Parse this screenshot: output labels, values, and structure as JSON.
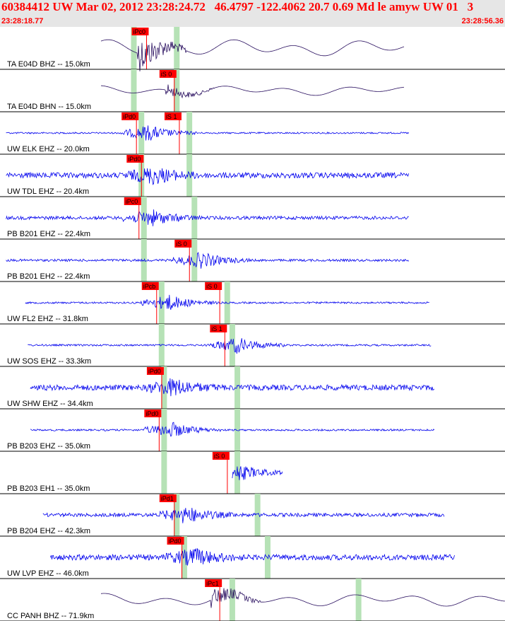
{
  "header": {
    "title": "60384412 UW Mar 02, 2012 23:28:24.72   46.4797 -122.4062 20.7 0.69 Md le amyw UW 01   3",
    "time_start": "23:28:18.77",
    "time_end": "23:28:56.36"
  },
  "colors": {
    "header_bg": "#e6e6e6",
    "header_text": "#ff0000",
    "trace_broadband": "#2a1060",
    "trace_short_period": "#0000ee",
    "pick_flag": "#ff0000",
    "window_band": "#b6e2b6",
    "separator": "#000000"
  },
  "traces": [
    {
      "label": "TA E04D BHZ -- 15.0km",
      "type": "lowfreq",
      "s": 0.2,
      "e": 0.8,
      "amp": 0.6,
      "picks": [
        {
          "text": "iPc0",
          "at": 0.265
        }
      ],
      "bands": [
        0.265,
        0.35
      ]
    },
    {
      "label": "TA E04D BHN -- 15.0km",
      "type": "lowfreq",
      "s": 0.2,
      "e": 0.8,
      "amp": 0.35,
      "picks": [
        {
          "text": "iS 0",
          "at": 0.32
        }
      ],
      "bands": [
        0.265,
        0.35
      ]
    },
    {
      "label": "UW ELK EHZ -- 20.0km",
      "type": "hf",
      "s": 0.012,
      "e": 0.81,
      "amp": 0.04,
      "picks": [
        {
          "text": "iPd0",
          "at": 0.245
        },
        {
          "text": "iS 1",
          "at": 0.33
        }
      ],
      "bands": [
        0.28,
        0.375
      ]
    },
    {
      "label": "UW TDL EHZ -- 20.4km",
      "type": "hf",
      "s": 0.012,
      "e": 0.81,
      "amp": 0.35,
      "picks": [
        {
          "text": "iPd0",
          "at": 0.255
        }
      ],
      "bands": [
        0.28,
        0.375
      ]
    },
    {
      "label": "PB B201 EHZ -- 22.4km",
      "type": "hf",
      "s": 0.012,
      "e": 0.81,
      "amp": 0.18,
      "picks": [
        {
          "text": "iPc0",
          "at": 0.25
        }
      ],
      "bands": [
        0.285,
        0.385
      ]
    },
    {
      "label": "PB B201 EH2 -- 22.4km",
      "type": "hf",
      "s": 0.012,
      "e": 0.81,
      "amp": 0.1,
      "picks": [
        {
          "text": "iS 0",
          "at": 0.35
        }
      ],
      "bands": [
        0.285,
        0.385
      ]
    },
    {
      "label": "UW FL2 EHZ -- 31.8km",
      "type": "hf",
      "s": 0.05,
      "e": 0.85,
      "amp": 0.06,
      "picks": [
        {
          "text": "iPcb",
          "at": 0.285
        },
        {
          "text": "iS 0",
          "at": 0.41
        }
      ],
      "bands": [
        0.32,
        0.45
      ]
    },
    {
      "label": "UW SOS EHZ -- 33.3km",
      "type": "hf",
      "s": 0.055,
      "e": 0.855,
      "amp": 0.06,
      "picks": [
        {
          "text": "iS 1",
          "at": 0.42
        }
      ],
      "bands": [
        0.32,
        0.46
      ]
    },
    {
      "label": "UW SHW EHZ -- 34.4km",
      "type": "hf",
      "s": 0.06,
      "e": 0.86,
      "amp": 0.35,
      "picks": [
        {
          "text": "iPd0",
          "at": 0.295
        }
      ],
      "bands": [
        0.325,
        0.47
      ]
    },
    {
      "label": "PB B203 EHZ -- 35.0km",
      "type": "hf",
      "s": 0.06,
      "e": 0.86,
      "amp": 0.06,
      "picks": [
        {
          "text": "iPd0",
          "at": 0.29
        }
      ],
      "bands": [
        0.325,
        0.47
      ]
    },
    {
      "label": "PB B203 EH1 -- 35.0km",
      "type": "hf",
      "s": 0.46,
      "e": 0.56,
      "amp": 0.1,
      "picks": [
        {
          "text": "iS 0",
          "at": 0.425
        }
      ],
      "bands": [
        0.325,
        0.47
      ]
    },
    {
      "label": "PB B204 EHZ -- 42.3km",
      "type": "hf",
      "s": 0.085,
      "e": 0.88,
      "amp": 0.2,
      "picks": [
        {
          "text": "iPd1",
          "at": 0.32
        }
      ],
      "bands": [
        0.35,
        0.51
      ]
    },
    {
      "label": "UW LVP EHZ -- 46.0km",
      "type": "hf",
      "s": 0.1,
      "e": 0.9,
      "amp": 0.35,
      "picks": [
        {
          "text": "iPd0",
          "at": 0.335
        }
      ],
      "bands": [
        0.365,
        0.53
      ]
    },
    {
      "label": "CC PANH BHZ -- 71.9km",
      "type": "lowfreq",
      "s": 0.2,
      "e": 1.0,
      "amp": 0.45,
      "picks": [
        {
          "text": "iPc1",
          "at": 0.41
        }
      ],
      "bands": [
        0.46,
        0.71
      ]
    }
  ]
}
